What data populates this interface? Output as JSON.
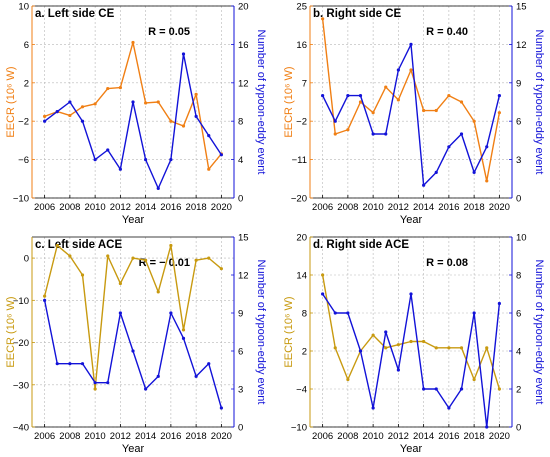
{
  "colors": {
    "blue": "#1212d8",
    "orange_ce": "#f07f14",
    "gold_ace": "#c89a10",
    "grid": "#b8b8b8"
  },
  "chart_data": [
    {
      "type": "line",
      "title": "a. Left side CE",
      "annotation": "R = 0.05",
      "xlabel": "Year",
      "ylabel": "EECR (10⁶ W)",
      "y2label": "Number of typoon-eddy event",
      "x": [
        2006,
        2007,
        2008,
        2009,
        2010,
        2011,
        2012,
        2013,
        2014,
        2015,
        2016,
        2017,
        2018,
        2019,
        2020
      ],
      "xlim": [
        2005,
        2021
      ],
      "xticks": [
        "2006",
        "2008",
        "2010",
        "2012",
        "2014",
        "2016",
        "2018",
        "2020"
      ],
      "ylim": [
        -10,
        10
      ],
      "yticks": [
        "−10",
        "−6",
        "−2",
        "2",
        "6",
        "10"
      ],
      "y2lim": [
        0,
        20
      ],
      "y2ticks": [
        "0",
        "4",
        "8",
        "12",
        "16",
        "20"
      ],
      "grid": true,
      "series": [
        {
          "axis": "left",
          "color": "orange_ce",
          "values": [
            -1.5,
            -1,
            -1.4,
            -0.5,
            -0.2,
            1.4,
            1.5,
            6.2,
            -0.1,
            0,
            -2,
            -2.5,
            0.8,
            -7,
            -5.4
          ]
        },
        {
          "axis": "right",
          "color": "blue",
          "values": [
            8,
            9,
            10,
            8,
            4,
            5,
            3,
            10,
            4,
            1,
            4,
            15,
            8.5,
            6.5,
            4.5
          ]
        }
      ]
    },
    {
      "type": "line",
      "title": "b. Right side CE",
      "annotation": "R = 0.40",
      "xlabel": "Year",
      "ylabel": "EECR (10⁶ W)",
      "y2label": "Number of typoon-eddy event",
      "x": [
        2006,
        2007,
        2008,
        2009,
        2010,
        2011,
        2012,
        2013,
        2014,
        2015,
        2016,
        2017,
        2018,
        2019,
        2020
      ],
      "xlim": [
        2005,
        2021
      ],
      "xticks": [
        "2006",
        "2008",
        "2010",
        "2012",
        "2014",
        "2016",
        "2018",
        "2020"
      ],
      "ylim": [
        -20,
        25
      ],
      "yticks": [
        "−20",
        "−11",
        "−2",
        "7",
        "16",
        "25"
      ],
      "y2lim": [
        0,
        15
      ],
      "y2ticks": [
        "0",
        "3",
        "6",
        "9",
        "12",
        "15"
      ],
      "grid": true,
      "series": [
        {
          "axis": "left",
          "color": "orange_ce",
          "values": [
            22,
            -5,
            -4,
            2.5,
            0,
            6,
            3,
            10,
            0.5,
            0.5,
            4,
            2.5,
            -2,
            -16,
            0
          ]
        },
        {
          "axis": "right",
          "color": "blue",
          "values": [
            8,
            6,
            8,
            8,
            5,
            5,
            10,
            12,
            1,
            2,
            4,
            5,
            2,
            4,
            8
          ]
        }
      ]
    },
    {
      "type": "line",
      "title": "c. Left side ACE",
      "annotation": "R = − 0.01",
      "xlabel": "Year",
      "ylabel": "EECR (10⁶ W)",
      "y2label": "Number of typoon-eddy event",
      "x": [
        2006,
        2007,
        2008,
        2009,
        2010,
        2011,
        2012,
        2013,
        2014,
        2015,
        2016,
        2017,
        2018,
        2019,
        2020
      ],
      "xlim": [
        2005,
        2021
      ],
      "xticks": [
        "2006",
        "2008",
        "2010",
        "2012",
        "2014",
        "2016",
        "2018",
        "2020"
      ],
      "ylim": [
        -40,
        5
      ],
      "yticks": [
        "−40",
        "−30",
        "−20",
        "−10",
        "0"
      ],
      "y2lim": [
        0,
        15
      ],
      "y2ticks": [
        "0",
        "3",
        "6",
        "9",
        "12",
        "15"
      ],
      "grid": true,
      "series": [
        {
          "axis": "left",
          "color": "gold_ace",
          "values": [
            -9,
            3,
            0.5,
            -4,
            -31,
            0.5,
            -6,
            0,
            -0.5,
            -8,
            3,
            -17,
            -0.5,
            0,
            -2.5
          ]
        },
        {
          "axis": "right",
          "color": "blue",
          "values": [
            10,
            5,
            5,
            5,
            3.5,
            3.5,
            9,
            6,
            3,
            4,
            9,
            7,
            4,
            5,
            1.5
          ]
        }
      ]
    },
    {
      "type": "line",
      "title": "d. Right side ACE",
      "annotation": "R = 0.08",
      "xlabel": "Year",
      "ylabel": "EECR (10⁶ W)",
      "y2label": "Number of typoon-eddy event",
      "x": [
        2006,
        2007,
        2008,
        2009,
        2010,
        2011,
        2012,
        2013,
        2014,
        2015,
        2016,
        2017,
        2018,
        2019,
        2020
      ],
      "xlim": [
        2005,
        2021
      ],
      "xticks": [
        "2006",
        "2008",
        "2010",
        "2012",
        "2014",
        "2016",
        "2018",
        "2020"
      ],
      "ylim": [
        -10,
        20
      ],
      "yticks": [
        "−10",
        "−4",
        "2",
        "8",
        "14",
        "20"
      ],
      "y2lim": [
        0,
        10
      ],
      "y2ticks": [
        "0",
        "2",
        "4",
        "6",
        "8",
        "10"
      ],
      "grid": true,
      "series": [
        {
          "axis": "left",
          "color": "gold_ace",
          "values": [
            14,
            2.5,
            -2.5,
            2,
            4.5,
            2.5,
            3,
            3.5,
            3.5,
            2.5,
            2.5,
            2.5,
            -2.5,
            2.5,
            -4
          ]
        },
        {
          "axis": "right",
          "color": "blue",
          "values": [
            7,
            6,
            6,
            4,
            1,
            5,
            3,
            7,
            2,
            2,
            1,
            2,
            6,
            0,
            6.5
          ]
        }
      ]
    }
  ]
}
